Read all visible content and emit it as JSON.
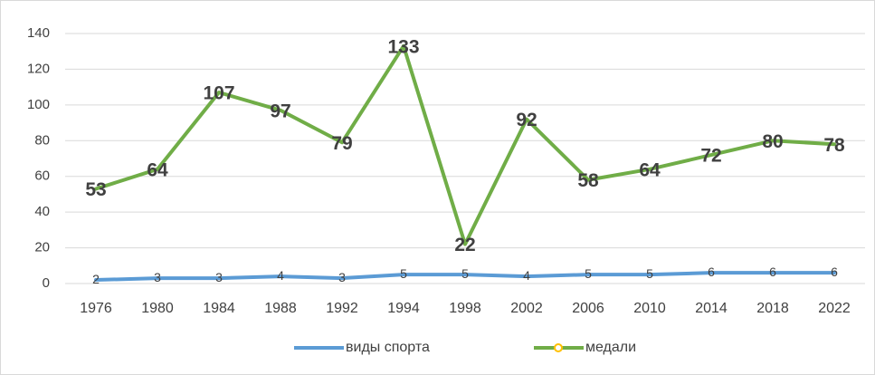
{
  "chart_data": {
    "type": "line",
    "categories": [
      "1976",
      "1980",
      "1984",
      "1988",
      "1992",
      "1994",
      "1998",
      "2002",
      "2006",
      "2010",
      "2014",
      "2018",
      "2022"
    ],
    "series": [
      {
        "name": "виды спорта",
        "color": "#5b9bd5",
        "values": [
          2,
          3,
          3,
          4,
          3,
          5,
          5,
          4,
          5,
          5,
          6,
          6,
          6
        ]
      },
      {
        "name": "медали",
        "color": "#70ad47",
        "values": [
          53,
          64,
          107,
          97,
          79,
          133,
          22,
          92,
          58,
          64,
          72,
          80,
          78
        ]
      }
    ],
    "ylim": [
      0,
      140
    ],
    "yticks": [
      0,
      20,
      40,
      60,
      80,
      100,
      120,
      140
    ],
    "grid": true,
    "legend": "bottom"
  }
}
